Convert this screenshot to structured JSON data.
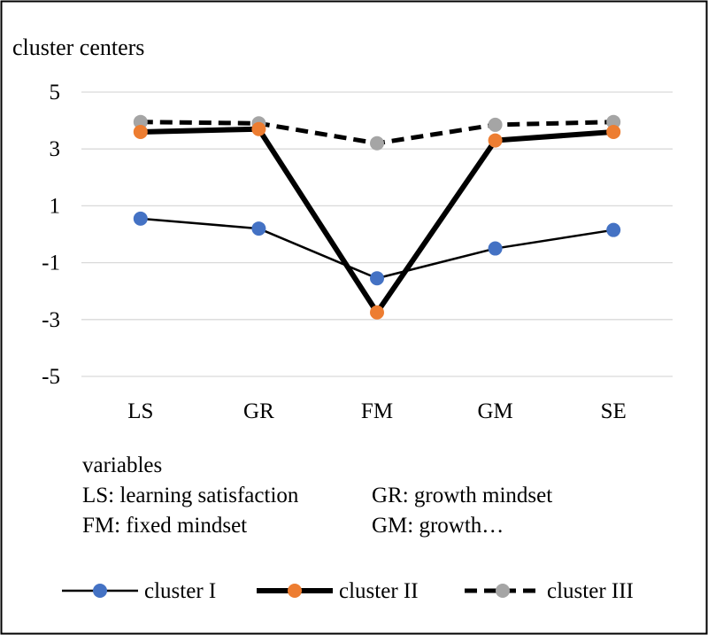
{
  "chart_data": {
    "type": "line",
    "ylabel": "cluster centers",
    "xlabel": "variables",
    "categories": [
      "LS",
      "GR",
      "FM",
      "GM",
      "SE"
    ],
    "ylim": [
      -5,
      5
    ],
    "yticks": [
      5,
      3,
      1,
      -1,
      -3,
      -5
    ],
    "grid": true,
    "legend_position": "bottom",
    "series": [
      {
        "name": "cluster I",
        "values": [
          0.55,
          0.2,
          -1.55,
          -0.5,
          0.15
        ],
        "line_color": "#000000",
        "marker_color": "#4472C4",
        "line_style": "solid-thin"
      },
      {
        "name": "cluster II",
        "values": [
          3.6,
          3.7,
          -2.75,
          3.3,
          3.6
        ],
        "line_color": "#000000",
        "marker_color": "#ED7D31",
        "line_style": "solid-thick"
      },
      {
        "name": "cluster III",
        "values": [
          3.95,
          3.9,
          3.2,
          3.85,
          3.95
        ],
        "line_color": "#000000",
        "marker_color": "#A5A5A5",
        "line_style": "dashed-thick"
      }
    ],
    "notes": [
      "LS: learning satisfaction",
      "GR: growth mindset",
      "FM: fixed mindset",
      "GM: growth…"
    ]
  }
}
